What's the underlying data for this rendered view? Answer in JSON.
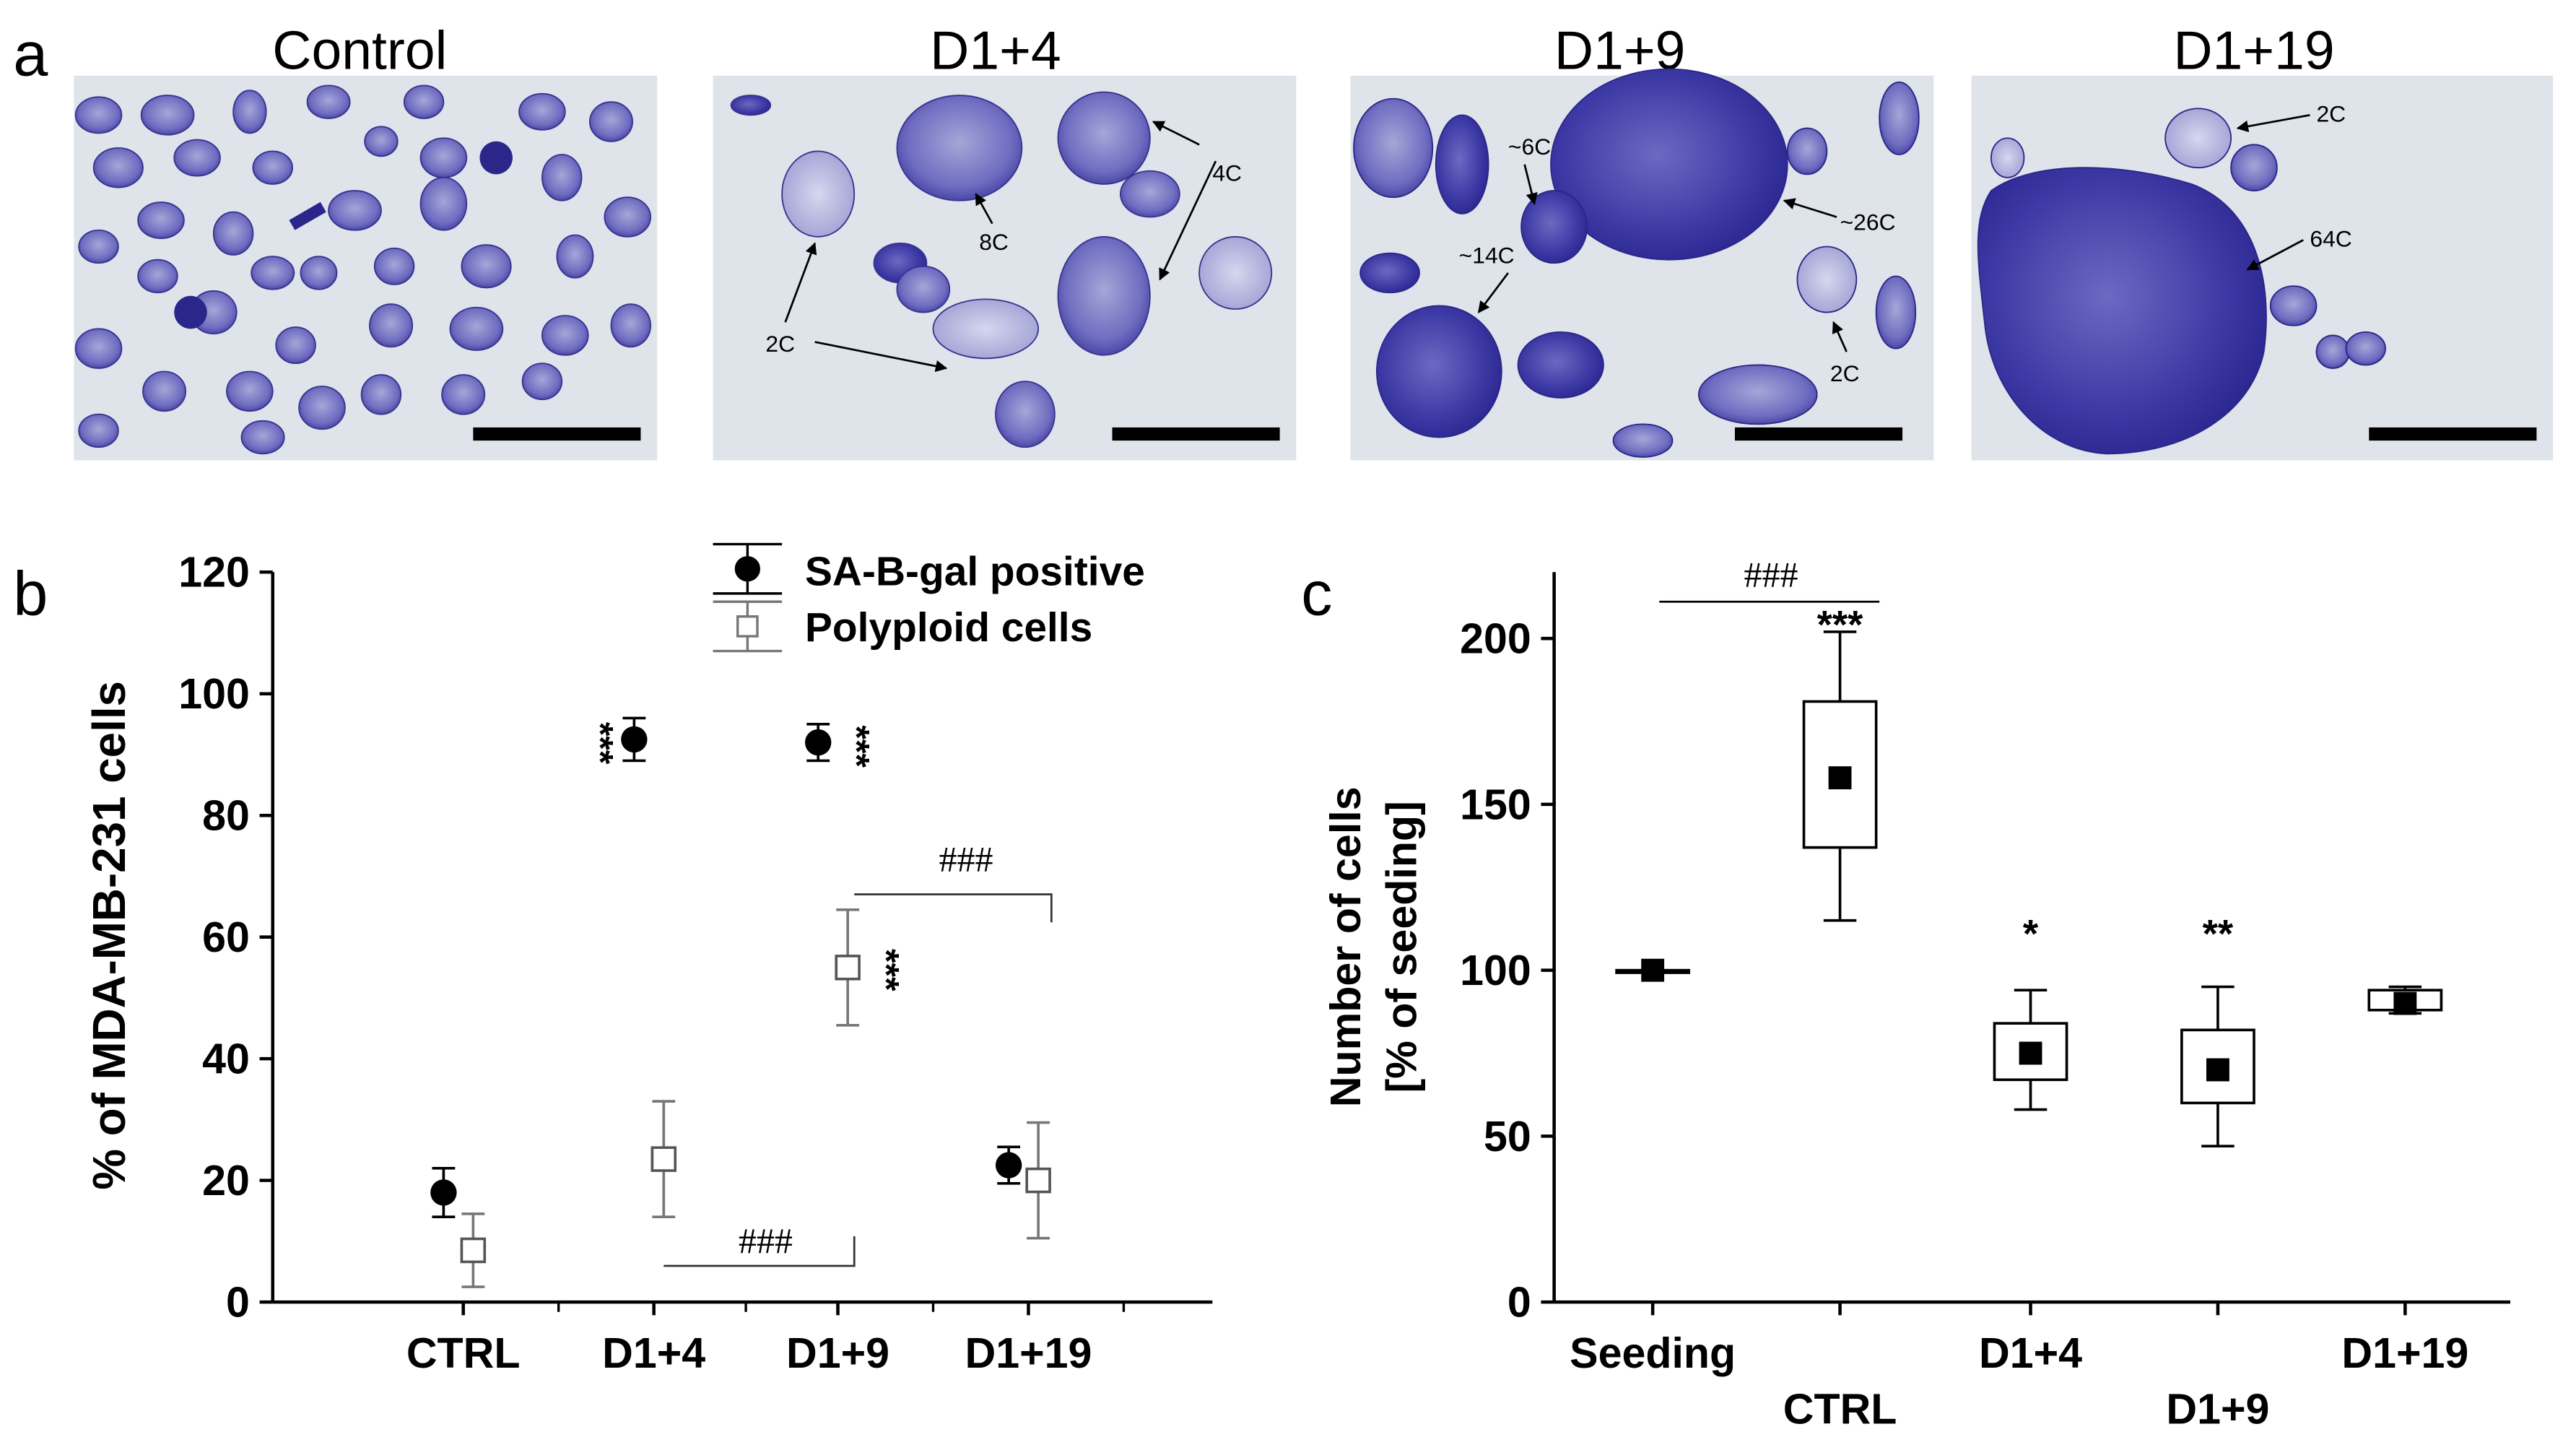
{
  "panel_a": {
    "letter": "a",
    "images": [
      {
        "title": "Control",
        "labels": []
      },
      {
        "title": "D1+4",
        "labels": [
          "4C",
          "8C",
          "2C"
        ]
      },
      {
        "title": "D1+9",
        "labels": [
          "~6C",
          "~26C",
          "~14C",
          "2C"
        ]
      },
      {
        "title": "D1+19",
        "labels": [
          "2C",
          "64C"
        ]
      }
    ]
  },
  "panel_b": {
    "letter": "b",
    "ylabel": "% of MDA-MB-231 cells",
    "yticks": [
      "0",
      "20",
      "40",
      "60",
      "80",
      "100",
      "120"
    ],
    "xticks": [
      "CTRL",
      "D1+4",
      "D1+9",
      "D1+19"
    ],
    "legend": [
      "SA-B-gal positive",
      "Polyploid cells"
    ],
    "sig": {
      "d4_senescent": "***",
      "d9_senescent": "***",
      "d9_polyploid": "***",
      "d4_d9": "###",
      "d9_d19": "###"
    }
  },
  "panel_c": {
    "letter": "c",
    "ylabel_line1": "Number of cells",
    "ylabel_line2": "[% of seeding]",
    "yticks": [
      "0",
      "50",
      "100",
      "150",
      "200"
    ],
    "xticks": [
      "Seeding",
      "CTRL",
      "D1+4",
      "D1+9",
      "D1+19"
    ],
    "sig": {
      "ctrl_vs_seeding": "###",
      "ctrl": "***",
      "d4": "*",
      "d9": "**"
    }
  },
  "chart_data": [
    {
      "type": "scatter",
      "xlabel": "",
      "ylabel": "% of MDA-MB-231 cells",
      "ylim": [
        0,
        120
      ],
      "categories": [
        "CTRL",
        "D1+4",
        "D1+9",
        "D1+19"
      ],
      "legend_position": "top-right",
      "series": [
        {
          "name": "SA-B-gal positive",
          "marker": "filled-circle",
          "values": [
            18,
            92.5,
            92,
            22.5
          ],
          "errors": [
            4,
            3.5,
            3,
            3
          ]
        },
        {
          "name": "Polyploid cells",
          "marker": "open-square",
          "values": [
            8.5,
            23.5,
            55,
            20
          ],
          "errors": [
            6,
            9.5,
            9.5,
            9.5
          ]
        }
      ]
    },
    {
      "type": "box",
      "xlabel": "",
      "ylabel": "Number of cells [% of seeding]",
      "ylim": [
        0,
        220
      ],
      "categories": [
        "Seeding",
        "CTRL",
        "D1+4",
        "D1+9",
        "D1+19"
      ],
      "boxes": [
        {
          "min": 100,
          "q1": 100,
          "median": 100,
          "q3": 100,
          "max": 100,
          "mean": 100
        },
        {
          "min": 115,
          "q1": 137,
          "median": 158,
          "q3": 181,
          "max": 202,
          "mean": 158
        },
        {
          "min": 58,
          "q1": 67,
          "median": 75,
          "q3": 84,
          "max": 94,
          "mean": 75
        },
        {
          "min": 47,
          "q1": 60,
          "median": 70,
          "q3": 82,
          "max": 95,
          "mean": 70
        },
        {
          "min": 87,
          "q1": 88,
          "median": 90,
          "q3": 94,
          "max": 95,
          "mean": 90
        }
      ]
    }
  ]
}
